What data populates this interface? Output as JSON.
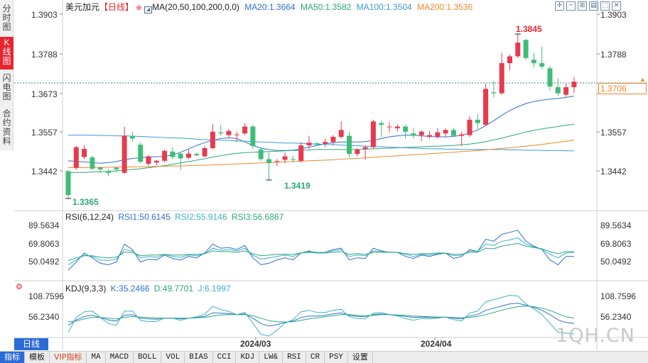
{
  "side_tabs": [
    "分时图",
    "K线图",
    "闪电图",
    "合约资料"
  ],
  "main_legend": {
    "symbol": "美元加元",
    "period_tag": "【日线】",
    "ma_label": "MA(20,50,100,200,0,0)",
    "ma20": "MA20:1.3664",
    "ma50": "MA50:1.3582",
    "ma100": "MA100:1.3504",
    "ma200": "MA200:1.3536"
  },
  "rsi_legend": {
    "title": "RSI(6,12,24)",
    "rsi1": "RSI1:50.6145",
    "rsi2": "RSI2:55.9146",
    "rsi3": "RSI3:56.6867"
  },
  "kdj_legend": {
    "title": "KDJ(9,3,3)",
    "k": "K:35.2466",
    "d": "D:49.7701",
    "j": "J:6.1997"
  },
  "price_axis": [
    "1.3903",
    "1.3788",
    "1.3673",
    "1.3557",
    "1.3442"
  ],
  "rsi_axis": [
    "89.5634",
    "69.8063",
    "50.0492"
  ],
  "kdj_axis": [
    "108.7596",
    "56.2340"
  ],
  "current_price": "1.3706",
  "high_label": "1.3845",
  "low_label": "1.3365",
  "mid_low_label": "1.3419",
  "date_labels": [
    "2024/03",
    "2024/04"
  ],
  "period_tab": "日线",
  "bottom_tabs": [
    "指标",
    "模板",
    "VIP指标",
    "MA",
    "MACD",
    "BOLL",
    "VOL",
    "BIAS",
    "CCI",
    "KDJ",
    "LW&",
    "RSI",
    "CR",
    "PSY",
    "设置"
  ],
  "watermark": "1QH.CN",
  "colors": {
    "up": "#e63a4f",
    "down": "#3fbd78",
    "ma20": "#2f6fd0",
    "ma50": "#2aa876",
    "ma100": "#3d9ad6",
    "ma200": "#f0882a",
    "rsi1": "#2f6fd0",
    "rsi2": "#3cb0c8",
    "rsi3": "#2aa876"
  },
  "chart_data": {
    "type": "candlestick",
    "ylim": [
      1.3365,
      1.3903
    ],
    "candles": [
      {
        "o": 1.3445,
        "h": 1.3448,
        "l": 1.3365,
        "c": 1.3375
      },
      {
        "o": 1.3455,
        "h": 1.3518,
        "l": 1.3448,
        "c": 1.3515
      },
      {
        "o": 1.3486,
        "h": 1.352,
        "l": 1.348,
        "c": 1.351
      },
      {
        "o": 1.3485,
        "h": 1.349,
        "l": 1.3448,
        "c": 1.3452
      },
      {
        "o": 1.3455,
        "h": 1.3458,
        "l": 1.344,
        "c": 1.345
      },
      {
        "o": 1.3445,
        "h": 1.345,
        "l": 1.343,
        "c": 1.344
      },
      {
        "o": 1.3455,
        "h": 1.3458,
        "l": 1.344,
        "c": 1.345
      },
      {
        "o": 1.344,
        "h": 1.3575,
        "l": 1.3438,
        "c": 1.3548
      },
      {
        "o": 1.3548,
        "h": 1.356,
        "l": 1.353,
        "c": 1.354
      },
      {
        "o": 1.3522,
        "h": 1.3528,
        "l": 1.3468,
        "c": 1.3472
      },
      {
        "o": 1.3466,
        "h": 1.3492,
        "l": 1.346,
        "c": 1.3488
      },
      {
        "o": 1.347,
        "h": 1.3478,
        "l": 1.3462,
        "c": 1.3475
      },
      {
        "o": 1.3475,
        "h": 1.3508,
        "l": 1.347,
        "c": 1.3504
      },
      {
        "o": 1.3502,
        "h": 1.3515,
        "l": 1.348,
        "c": 1.3486
      },
      {
        "o": 1.3496,
        "h": 1.35,
        "l": 1.3448,
        "c": 1.3482
      },
      {
        "o": 1.3484,
        "h": 1.3508,
        "l": 1.348,
        "c": 1.3496
      },
      {
        "o": 1.3495,
        "h": 1.35,
        "l": 1.3488,
        "c": 1.3491
      },
      {
        "o": 1.3488,
        "h": 1.3518,
        "l": 1.3485,
        "c": 1.3512
      },
      {
        "o": 1.3512,
        "h": 1.3582,
        "l": 1.351,
        "c": 1.356
      },
      {
        "o": 1.3558,
        "h": 1.358,
        "l": 1.3548,
        "c": 1.3555
      },
      {
        "o": 1.355,
        "h": 1.3568,
        "l": 1.354,
        "c": 1.3562
      },
      {
        "o": 1.355,
        "h": 1.356,
        "l": 1.353,
        "c": 1.3552
      },
      {
        "o": 1.3555,
        "h": 1.3585,
        "l": 1.355,
        "c": 1.3575
      },
      {
        "o": 1.3575,
        "h": 1.358,
        "l": 1.351,
        "c": 1.3518
      },
      {
        "o": 1.3508,
        "h": 1.3515,
        "l": 1.3475,
        "c": 1.348
      },
      {
        "o": 1.348,
        "h": 1.35,
        "l": 1.3419,
        "c": 1.3468
      },
      {
        "o": 1.3472,
        "h": 1.348,
        "l": 1.346,
        "c": 1.3474
      },
      {
        "o": 1.3478,
        "h": 1.35,
        "l": 1.3468,
        "c": 1.3488
      },
      {
        "o": 1.348,
        "h": 1.349,
        "l": 1.347,
        "c": 1.3478
      },
      {
        "o": 1.3475,
        "h": 1.353,
        "l": 1.347,
        "c": 1.352
      },
      {
        "o": 1.352,
        "h": 1.3548,
        "l": 1.351,
        "c": 1.3528
      },
      {
        "o": 1.3526,
        "h": 1.353,
        "l": 1.3518,
        "c": 1.3522
      },
      {
        "o": 1.3525,
        "h": 1.354,
        "l": 1.3515,
        "c": 1.353
      },
      {
        "o": 1.353,
        "h": 1.355,
        "l": 1.352,
        "c": 1.3545
      },
      {
        "o": 1.3545,
        "h": 1.359,
        "l": 1.354,
        "c": 1.3565
      },
      {
        "o": 1.3548,
        "h": 1.356,
        "l": 1.3485,
        "c": 1.3495
      },
      {
        "o": 1.3495,
        "h": 1.3512,
        "l": 1.3488,
        "c": 1.3508
      },
      {
        "o": 1.351,
        "h": 1.352,
        "l": 1.3478,
        "c": 1.3515
      },
      {
        "o": 1.3515,
        "h": 1.3595,
        "l": 1.351,
        "c": 1.359
      },
      {
        "o": 1.3585,
        "h": 1.3592,
        "l": 1.3545,
        "c": 1.358
      },
      {
        "o": 1.3575,
        "h": 1.3588,
        "l": 1.3558,
        "c": 1.3575
      },
      {
        "o": 1.357,
        "h": 1.3582,
        "l": 1.356,
        "c": 1.3575
      },
      {
        "o": 1.3575,
        "h": 1.358,
        "l": 1.354,
        "c": 1.356
      },
      {
        "o": 1.3555,
        "h": 1.357,
        "l": 1.354,
        "c": 1.3548
      },
      {
        "o": 1.355,
        "h": 1.3565,
        "l": 1.3532,
        "c": 1.356
      },
      {
        "o": 1.3545,
        "h": 1.3562,
        "l": 1.354,
        "c": 1.355
      },
      {
        "o": 1.3545,
        "h": 1.357,
        "l": 1.354,
        "c": 1.3558
      },
      {
        "o": 1.3555,
        "h": 1.357,
        "l": 1.3545,
        "c": 1.3565
      },
      {
        "o": 1.3565,
        "h": 1.3572,
        "l": 1.3545,
        "c": 1.3548
      },
      {
        "o": 1.3548,
        "h": 1.356,
        "l": 1.3518,
        "c": 1.3552
      },
      {
        "o": 1.355,
        "h": 1.3605,
        "l": 1.3545,
        "c": 1.3595
      },
      {
        "o": 1.3595,
        "h": 1.3612,
        "l": 1.3568,
        "c": 1.3585
      },
      {
        "o": 1.358,
        "h": 1.37,
        "l": 1.3578,
        "c": 1.3685
      },
      {
        "o": 1.3675,
        "h": 1.3708,
        "l": 1.366,
        "c": 1.3672
      },
      {
        "o": 1.3672,
        "h": 1.379,
        "l": 1.3668,
        "c": 1.376
      },
      {
        "o": 1.376,
        "h": 1.3785,
        "l": 1.374,
        "c": 1.378
      },
      {
        "o": 1.378,
        "h": 1.3845,
        "l": 1.3775,
        "c": 1.382
      },
      {
        "o": 1.3828,
        "h": 1.383,
        "l": 1.377,
        "c": 1.3775
      },
      {
        "o": 1.377,
        "h": 1.379,
        "l": 1.3748,
        "c": 1.376
      },
      {
        "o": 1.376,
        "h": 1.3808,
        "l": 1.3742,
        "c": 1.375
      },
      {
        "o": 1.3745,
        "h": 1.3752,
        "l": 1.368,
        "c": 1.3692
      },
      {
        "o": 1.369,
        "h": 1.3716,
        "l": 1.3665,
        "c": 1.3672
      },
      {
        "o": 1.3668,
        "h": 1.37,
        "l": 1.3662,
        "c": 1.369
      },
      {
        "o": 1.369,
        "h": 1.372,
        "l": 1.3672,
        "c": 1.3706
      }
    ],
    "ma20": [
      1.3475,
      1.3473,
      1.3472,
      1.347,
      1.3468,
      1.347,
      1.3473,
      1.3478,
      1.3482,
      1.3484,
      1.3486,
      1.3487,
      1.3488,
      1.3492,
      1.35,
      1.351,
      1.352,
      1.3528,
      1.3535,
      1.354,
      1.3542,
      1.354,
      1.353,
      1.352,
      1.3512,
      1.3508,
      1.3505,
      1.3505,
      1.3506,
      1.351,
      1.3515,
      1.352,
      1.3525,
      1.3528,
      1.353,
      1.353,
      1.353,
      1.3531,
      1.3534,
      1.354,
      1.3545,
      1.3548,
      1.355,
      1.355,
      1.3548,
      1.3546,
      1.3545,
      1.3545,
      1.3546,
      1.355,
      1.3556,
      1.3565,
      1.3578,
      1.3592,
      1.3608,
      1.3622,
      1.3633,
      1.3642,
      1.3648,
      1.3652,
      1.3655,
      1.3657,
      1.366,
      1.3664
    ],
    "ma50": [
      1.344,
      1.3441,
      1.3441,
      1.3442,
      1.3443,
      1.3444,
      1.3446,
      1.3448,
      1.345,
      1.3452,
      1.3455,
      1.3458,
      1.3461,
      1.3465,
      1.3469,
      1.3473,
      1.3477,
      1.3481,
      1.3486,
      1.349,
      1.3494,
      1.3497,
      1.3499,
      1.35,
      1.3501,
      1.3502,
      1.3503,
      1.3504,
      1.3505,
      1.3506,
      1.3507,
      1.3508,
      1.3508,
      1.3508,
      1.3508,
      1.3508,
      1.3508,
      1.3509,
      1.351,
      1.3511,
      1.3512,
      1.3513,
      1.3514,
      1.3515,
      1.3516,
      1.3517,
      1.3518,
      1.3519,
      1.352,
      1.3522,
      1.3524,
      1.3527,
      1.3531,
      1.3536,
      1.3541,
      1.3547,
      1.3553,
      1.3559,
      1.3564,
      1.3568,
      1.3572,
      1.3575,
      1.3579,
      1.3582
    ],
    "ma100": [
      1.355,
      1.355,
      1.355,
      1.355,
      1.3549,
      1.3549,
      1.3548,
      1.3548,
      1.3547,
      1.3546,
      1.3545,
      1.3544,
      1.3543,
      1.3542,
      1.3541,
      1.354,
      1.3538,
      1.3537,
      1.3536,
      1.3535,
      1.3534,
      1.3533,
      1.3532,
      1.3531,
      1.353,
      1.3529,
      1.3528,
      1.3527,
      1.3527,
      1.3526,
      1.3525,
      1.3524,
      1.3523,
      1.3522,
      1.3521,
      1.352,
      1.3519,
      1.3518,
      1.3517,
      1.3516,
      1.3515,
      1.3514,
      1.3513,
      1.3512,
      1.3511,
      1.351,
      1.351,
      1.3509,
      1.3509,
      1.3508,
      1.3508,
      1.3508,
      1.3508,
      1.3508,
      1.3508,
      1.3507,
      1.3507,
      1.3506,
      1.3506,
      1.3505,
      1.3505,
      1.3505,
      1.3504,
      1.3504
    ],
    "ma200": [
      1.3455,
      1.3455,
      1.3455,
      1.3456,
      1.3456,
      1.3456,
      1.3457,
      1.3457,
      1.3457,
      1.3458,
      1.3458,
      1.3459,
      1.3459,
      1.346,
      1.346,
      1.3461,
      1.3462,
      1.3462,
      1.3463,
      1.3464,
      1.3465,
      1.3466,
      1.3467,
      1.3468,
      1.3469,
      1.347,
      1.3471,
      1.3472,
      1.3473,
      1.3474,
      1.3475,
      1.3476,
      1.3477,
      1.3478,
      1.348,
      1.3481,
      1.3482,
      1.3484,
      1.3485,
      1.3487,
      1.3488,
      1.349,
      1.3491,
      1.3493,
      1.3494,
      1.3496,
      1.3497,
      1.3499,
      1.35,
      1.3502,
      1.3503,
      1.3505,
      1.3507,
      1.3509,
      1.3511,
      1.3513,
      1.3515,
      1.3518,
      1.352,
      1.3523,
      1.3526,
      1.3529,
      1.3532,
      1.3536
    ],
    "rsi1": [
      30,
      42,
      55,
      48,
      40,
      38,
      42,
      68,
      60,
      42,
      46,
      45,
      52,
      47,
      45,
      50,
      48,
      55,
      68,
      62,
      63,
      60,
      66,
      48,
      38,
      40,
      45,
      48,
      45,
      55,
      58,
      55,
      56,
      60,
      62,
      45,
      48,
      47,
      62,
      58,
      56,
      56,
      50,
      47,
      52,
      50,
      53,
      55,
      47,
      50,
      60,
      57,
      75,
      72,
      82,
      85,
      88,
      72,
      65,
      60,
      45,
      38,
      50,
      50
    ],
    "rsi2": [
      38,
      45,
      52,
      50,
      45,
      44,
      46,
      60,
      58,
      48,
      50,
      49,
      53,
      50,
      49,
      52,
      51,
      54,
      62,
      59,
      60,
      58,
      62,
      52,
      46,
      48,
      50,
      52,
      50,
      55,
      57,
      56,
      56,
      58,
      60,
      50,
      52,
      51,
      58,
      57,
      56,
      56,
      53,
      50,
      53,
      52,
      54,
      55,
      51,
      52,
      58,
      57,
      68,
      66,
      72,
      74,
      77,
      68,
      64,
      60,
      53,
      48,
      55,
      56
    ],
    "rsi3": [
      44,
      48,
      51,
      51,
      49,
      48,
      49,
      56,
      56,
      51,
      52,
      52,
      53,
      52,
      52,
      53,
      53,
      54,
      58,
      57,
      57,
      56,
      58,
      54,
      51,
      52,
      53,
      53,
      53,
      55,
      56,
      55,
      55,
      56,
      57,
      53,
      54,
      53,
      56,
      56,
      56,
      56,
      54,
      53,
      54,
      54,
      55,
      55,
      53,
      53,
      56,
      56,
      62,
      61,
      65,
      67,
      69,
      65,
      63,
      61,
      57,
      54,
      57,
      57
    ],
    "kdj_k": [
      30,
      45,
      55,
      58,
      52,
      45,
      42,
      58,
      60,
      50,
      48,
      47,
      50,
      50,
      48,
      50,
      52,
      55,
      65,
      64,
      63,
      60,
      62,
      50,
      35,
      28,
      32,
      38,
      42,
      52,
      56,
      56,
      58,
      62,
      65,
      58,
      55,
      54,
      60,
      62,
      60,
      58,
      55,
      52,
      53,
      52,
      52,
      53,
      50,
      48,
      56,
      60,
      72,
      78,
      84,
      90,
      92,
      86,
      80,
      72,
      60,
      45,
      38,
      35
    ],
    "kdj_d": [
      40,
      42,
      48,
      52,
      52,
      50,
      48,
      52,
      55,
      53,
      52,
      50,
      50,
      50,
      50,
      50,
      51,
      52,
      56,
      59,
      60,
      60,
      60,
      57,
      50,
      43,
      40,
      39,
      40,
      44,
      48,
      51,
      54,
      57,
      60,
      60,
      58,
      57,
      58,
      60,
      60,
      59,
      58,
      56,
      55,
      54,
      53,
      53,
      52,
      51,
      52,
      55,
      60,
      66,
      72,
      78,
      82,
      84,
      82,
      78,
      72,
      62,
      54,
      50
    ],
    "kdj_j": [
      10,
      52,
      68,
      70,
      52,
      35,
      30,
      70,
      70,
      44,
      40,
      41,
      50,
      50,
      44,
      50,
      54,
      61,
      83,
      74,
      69,
      60,
      66,
      36,
      5,
      0,
      16,
      36,
      46,
      68,
      72,
      66,
      66,
      72,
      75,
      54,
      49,
      48,
      64,
      66,
      60,
      56,
      49,
      44,
      49,
      48,
      50,
      53,
      46,
      42,
      64,
      70,
      96,
      102,
      108,
      114,
      112,
      90,
      76,
      60,
      36,
      11,
      8,
      6
    ]
  }
}
